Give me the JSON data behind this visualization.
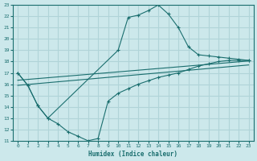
{
  "bg_color": "#cce8eb",
  "grid_color": "#b0d4d8",
  "line_color": "#1a6e6e",
  "xlabel": "Humidex (Indice chaleur)",
  "xlim": [
    -0.5,
    23.5
  ],
  "ylim": [
    11,
    23
  ],
  "xticks": [
    0,
    1,
    2,
    3,
    4,
    5,
    6,
    7,
    8,
    9,
    10,
    11,
    12,
    13,
    14,
    15,
    16,
    17,
    18,
    19,
    20,
    21,
    22,
    23
  ],
  "yticks": [
    11,
    12,
    13,
    14,
    15,
    16,
    17,
    18,
    19,
    20,
    21,
    22,
    23
  ],
  "curve_top_x": [
    0,
    1,
    2,
    3,
    10,
    11,
    12,
    13,
    14,
    15,
    16,
    17,
    18,
    19,
    20,
    21,
    22,
    23
  ],
  "curve_top_y": [
    17.0,
    15.9,
    14.1,
    13.0,
    19.0,
    21.9,
    22.1,
    22.5,
    23.0,
    22.2,
    21.0,
    19.3,
    18.6,
    18.5,
    18.4,
    18.3,
    18.2,
    18.1
  ],
  "curve_bot_x": [
    0,
    1,
    2,
    3,
    4,
    5,
    6,
    7,
    8,
    9,
    10,
    11,
    12,
    13,
    14,
    15,
    16,
    17,
    18,
    19,
    20,
    21,
    22,
    23
  ],
  "curve_bot_y": [
    17.0,
    15.9,
    14.1,
    13.0,
    12.5,
    11.8,
    11.4,
    11.0,
    11.2,
    14.5,
    15.2,
    15.6,
    16.0,
    16.3,
    16.6,
    16.8,
    17.0,
    17.3,
    17.6,
    17.8,
    18.0,
    18.1,
    18.1,
    18.1
  ],
  "line1_x": [
    0,
    23
  ],
  "line1_y": [
    16.35,
    18.05
  ],
  "line2_x": [
    0,
    23
  ],
  "line2_y": [
    15.9,
    17.7
  ]
}
